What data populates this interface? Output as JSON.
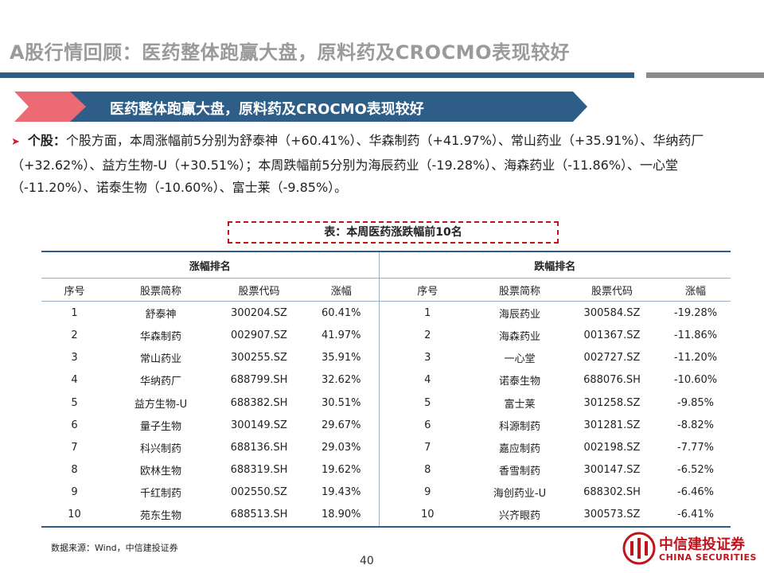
{
  "header": {
    "title": "A股行情回顾：医药整体跑赢大盘，原料药及CROCMO表现较好"
  },
  "banner": {
    "text": "医药整体跑赢大盘，原料药及CROCMO表现较好"
  },
  "bullet": {
    "label": "个股：",
    "text": "个股方面，本周涨幅前5分别为舒泰神（+60.41%）、华森制药（+41.97%）、常山药业（+35.91%）、华纳药厂（+32.62%）、益方生物-U（+30.51%）；本周跌幅前5分别为海辰药业（-19.28%）、海森药业（-11.86%）、一心堂（-11.20%）、诺泰生物（-10.60%）、富士莱（-9.85%）。"
  },
  "table": {
    "caption": "表：本周医药涨跌幅前10名",
    "gainers_header": "涨幅排名",
    "losers_header": "跌幅排名",
    "columns": [
      "序号",
      "股票简称",
      "股票代码",
      "涨幅"
    ],
    "rows": [
      {
        "rank": "1",
        "g_name": "舒泰神",
        "g_code": "300204.SZ",
        "g_chg": "60.41%",
        "l_rank": "1",
        "l_name": "海辰药业",
        "l_code": "300584.SZ",
        "l_chg": "-19.28%"
      },
      {
        "rank": "2",
        "g_name": "华森制药",
        "g_code": "002907.SZ",
        "g_chg": "41.97%",
        "l_rank": "2",
        "l_name": "海森药业",
        "l_code": "001367.SZ",
        "l_chg": "-11.86%"
      },
      {
        "rank": "3",
        "g_name": "常山药业",
        "g_code": "300255.SZ",
        "g_chg": "35.91%",
        "l_rank": "3",
        "l_name": "一心堂",
        "l_code": "002727.SZ",
        "l_chg": "-11.20%"
      },
      {
        "rank": "4",
        "g_name": "华纳药厂",
        "g_code": "688799.SH",
        "g_chg": "32.62%",
        "l_rank": "4",
        "l_name": "诺泰生物",
        "l_code": "688076.SH",
        "l_chg": "-10.60%"
      },
      {
        "rank": "5",
        "g_name": "益方生物-U",
        "g_code": "688382.SH",
        "g_chg": "30.51%",
        "l_rank": "5",
        "l_name": "富士莱",
        "l_code": "301258.SZ",
        "l_chg": "-9.85%"
      },
      {
        "rank": "6",
        "g_name": "量子生物",
        "g_code": "300149.SZ",
        "g_chg": "29.67%",
        "l_rank": "6",
        "l_name": "科源制药",
        "l_code": "301281.SZ",
        "l_chg": "-8.82%"
      },
      {
        "rank": "7",
        "g_name": "科兴制药",
        "g_code": "688136.SH",
        "g_chg": "29.03%",
        "l_rank": "7",
        "l_name": "嘉应制药",
        "l_code": "002198.SZ",
        "l_chg": "-7.77%"
      },
      {
        "rank": "8",
        "g_name": "欧林生物",
        "g_code": "688319.SH",
        "g_chg": "19.62%",
        "l_rank": "8",
        "l_name": "香雪制药",
        "l_code": "300147.SZ",
        "l_chg": "-6.52%"
      },
      {
        "rank": "9",
        "g_name": "千红制药",
        "g_code": "002550.SZ",
        "g_chg": "19.43%",
        "l_rank": "9",
        "l_name": "海创药业-U",
        "l_code": "688302.SH",
        "l_chg": "-6.46%"
      },
      {
        "rank": "10",
        "g_name": "苑东生物",
        "g_code": "688513.SH",
        "g_chg": "18.90%",
        "l_rank": "10",
        "l_name": "兴齐眼药",
        "l_code": "300573.SZ",
        "l_chg": "-6.41%"
      }
    ]
  },
  "footer": {
    "source": "数据来源：Wind，中信建投证券",
    "page": "40"
  },
  "logo": {
    "cn": "中信建投证券",
    "en": "CHINA SECURITIES"
  },
  "colors": {
    "brand_blue": "#2e5e88",
    "brand_red": "#c0141c",
    "banner_red": "#e8505b"
  }
}
